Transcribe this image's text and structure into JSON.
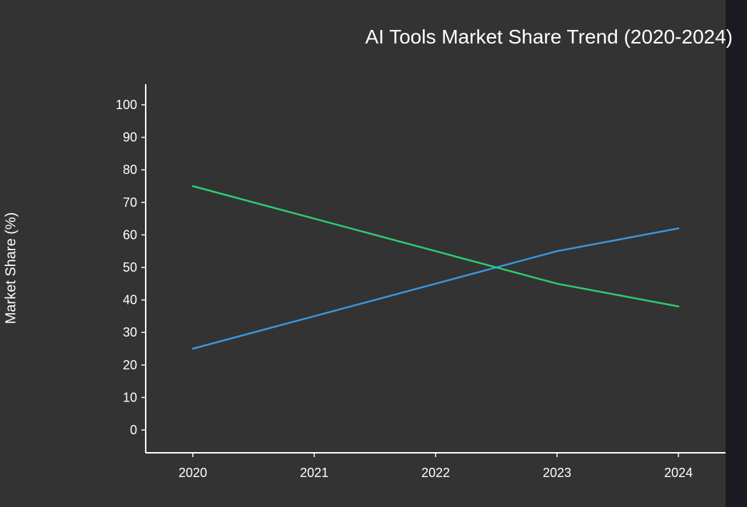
{
  "chart_data": {
    "type": "line",
    "title": "AI Tools Market Share Trend (2020-2024)",
    "xlabel": "",
    "ylabel": "Market Share (%)",
    "x": [
      "2020",
      "2021",
      "2022",
      "2023",
      "2024"
    ],
    "ylim": [
      0,
      100
    ],
    "yticks": [
      0,
      10,
      20,
      30,
      40,
      50,
      60,
      70,
      80,
      90,
      100
    ],
    "grid": false,
    "series": [
      {
        "values": [
          25,
          35,
          45,
          55,
          62
        ],
        "color": "#3a96dd"
      },
      {
        "values": [
          75,
          65,
          55,
          45,
          38
        ],
        "color": "#2ecc71"
      }
    ]
  },
  "colors": {
    "panel": "#333333",
    "axis": "#ffffff",
    "text": "#ffffff"
  }
}
